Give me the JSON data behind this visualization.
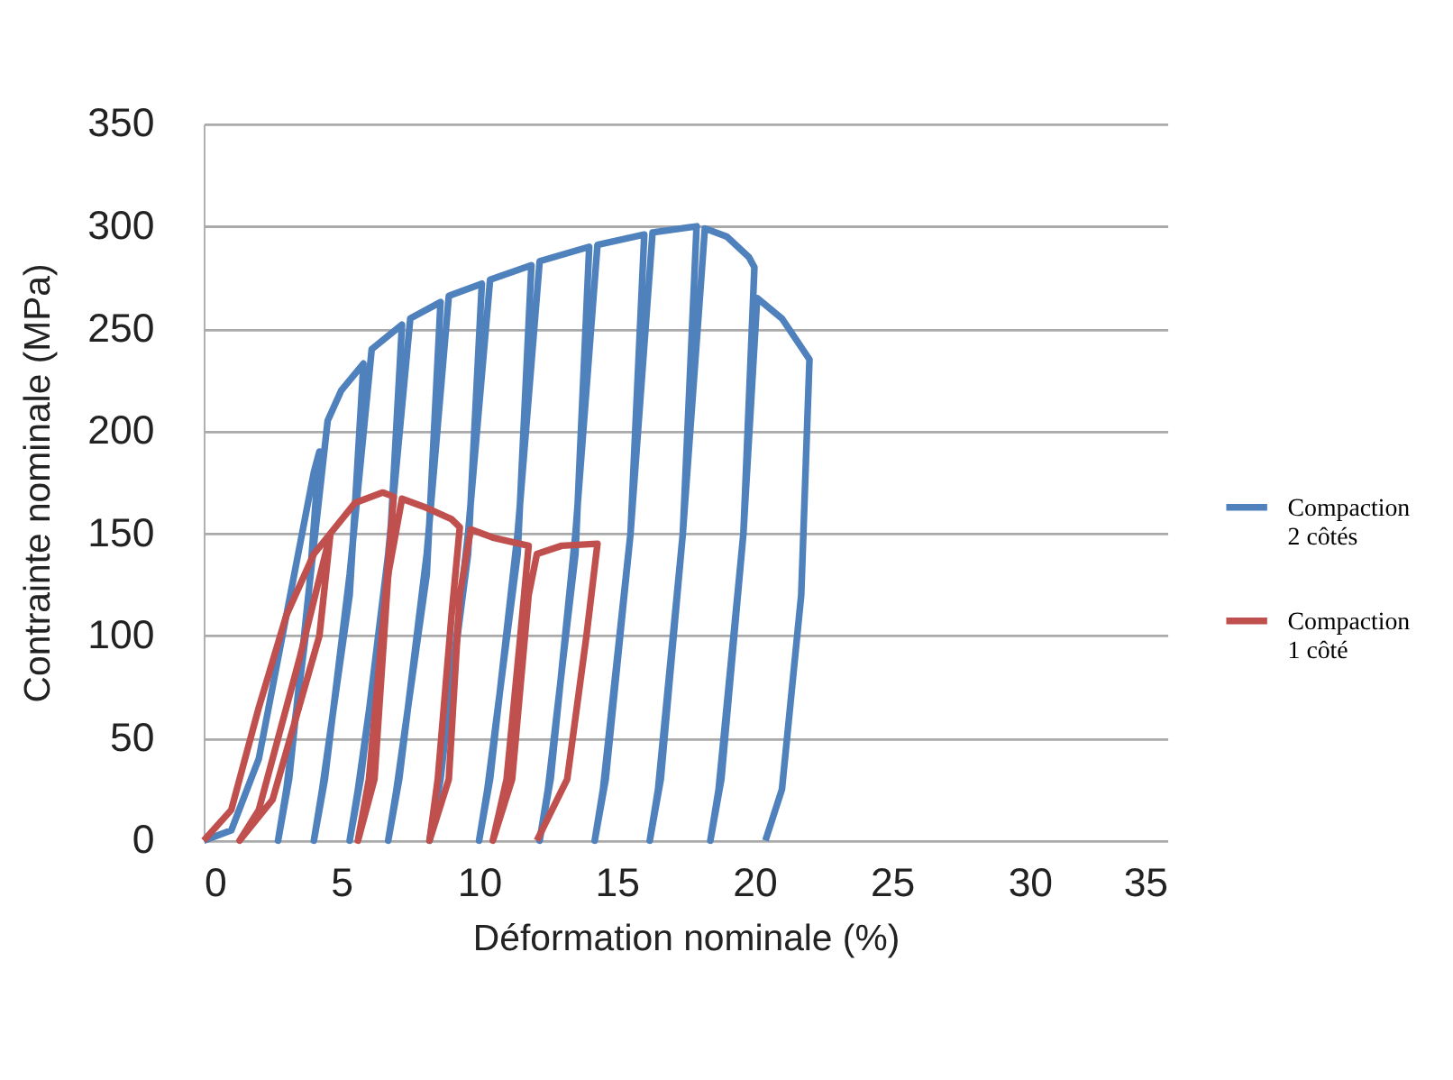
{
  "chart_data": {
    "type": "line",
    "xlabel": "Déformation nominale (%)",
    "ylabel": "Contrainte nominale (MPa)",
    "xlim": [
      0,
      35
    ],
    "xticks": [
      0,
      5,
      10,
      15,
      20,
      25,
      30,
      35
    ],
    "ylim": [
      0,
      350
    ],
    "yticks": [
      0,
      50,
      100,
      150,
      200,
      250,
      300,
      350
    ],
    "grid": "y",
    "legend": "right",
    "line_style": "solid",
    "marker": "none",
    "series": [
      {
        "name": "Compaction\n2 côtés",
        "color": "#4f81bd",
        "x": [
          0,
          1,
          2,
          3,
          4,
          4.2,
          3.7,
          3.0,
          2.7,
          3.1,
          3.8,
          4.5,
          5,
          5.8,
          5.3,
          4.3,
          4.0,
          4.4,
          5.3,
          6.1,
          7.2,
          6.7,
          5.6,
          5.3,
          5.7,
          6.7,
          7.5,
          8.6,
          8.1,
          7.0,
          6.7,
          7.1,
          8.1,
          8.9,
          10.1,
          9.6,
          8.5,
          8.2,
          8.6,
          9.6,
          10.4,
          11.9,
          11.4,
          10.3,
          10.0,
          10.4,
          11.4,
          12.2,
          14.0,
          13.5,
          12.5,
          12.2,
          12.6,
          13.5,
          14.3,
          16.0,
          15.5,
          14.5,
          14.2,
          14.6,
          15.5,
          16.3,
          17.9,
          17.4,
          16.5,
          16.2,
          16.6,
          17.4,
          18.2,
          19,
          19.8,
          20.0,
          19.6,
          18.7,
          18.4,
          18.8,
          19.6,
          20.1,
          21,
          22,
          21.7,
          21.0,
          20.4
        ],
        "values": [
          0,
          5,
          40,
          110,
          180,
          190,
          100,
          25,
          0,
          30,
          120,
          205,
          220,
          233,
          120,
          25,
          0,
          30,
          130,
          240,
          252,
          130,
          25,
          0,
          30,
          140,
          255,
          263,
          130,
          25,
          0,
          30,
          140,
          266,
          272,
          140,
          25,
          0,
          30,
          150,
          274,
          281,
          140,
          25,
          0,
          30,
          150,
          283,
          290,
          140,
          25,
          0,
          30,
          150,
          291,
          296,
          150,
          25,
          0,
          30,
          150,
          297,
          300,
          150,
          25,
          0,
          30,
          150,
          299,
          295,
          285,
          280,
          150,
          25,
          0,
          30,
          150,
          265,
          255,
          235,
          120,
          25,
          0
        ]
      },
      {
        "name": "Compaction\n1 côté",
        "color": "#c0504d",
        "x": [
          0,
          1,
          2,
          3,
          4,
          4.6,
          4.2,
          2.5,
          1.3,
          2.0,
          3.5,
          4.6,
          5.5,
          6.5,
          6.9,
          6.6,
          6.0,
          5.6,
          6.2,
          6.7,
          7.2,
          8,
          9,
          9.3,
          9.0,
          8.5,
          8.2,
          8.9,
          9.3,
          9.7,
          10.5,
          11.8,
          11.5,
          11.0,
          10.5,
          11.2,
          11.8,
          12.1,
          13,
          14.3,
          13.9,
          13.2,
          12.1
        ],
        "values": [
          0,
          15,
          65,
          110,
          140,
          150,
          100,
          20,
          0,
          15,
          90,
          150,
          165,
          170,
          168,
          120,
          30,
          0,
          30,
          130,
          167,
          163,
          157,
          153,
          110,
          30,
          0,
          30,
          120,
          152,
          148,
          144,
          100,
          30,
          0,
          30,
          120,
          140,
          144,
          145,
          100,
          30,
          0
        ]
      }
    ]
  }
}
